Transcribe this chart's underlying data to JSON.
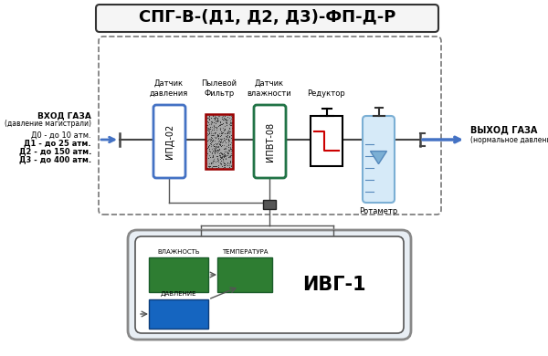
{
  "title_bold": "СПГ-В-",
  "title_rest": "(Д1, Д2, Д3)-ФП-Д-Р",
  "title_full": "СПГ-В-(Д1, Д2, Д3)-ФП-Д-Р",
  "bg_color": "#ffffff",
  "ipd_label": "ИПД-02",
  "ipvt_label": "ИПВТ-08",
  "ivg_label": "ИВГ-1",
  "rotametr_label": "Ротаметр",
  "vhod_label1": "ВХОД ГАЗА",
  "vhod_label2": "(давление магистрали)",
  "d0": "Д0 - до 10 атм.",
  "d1": "Д1 - до 25 атм.",
  "d2": "Д2 - до 150 атм.",
  "d3": "Д3 - до 400 атм.",
  "vyhod_label1": "ВЫХОД ГАЗА",
  "vyhod_label2": "(нормальное давление )",
  "datchik_davleniya": "Датчик\nдавления",
  "pylevoy_filtr": "Пылевой\nФильтр",
  "datchik_vlazhnosti": "Датчик\nвлажности",
  "reduktor": "Редуктор",
  "vlazhnost": "ВЛАЖНОСТЬ",
  "temperatura": "ТЕМПЕРАТУРА",
  "davlenie": "ДАВЛЕНИЕ",
  "blue_color": "#4472C4",
  "green_color": "#217346",
  "light_blue": "#9DC3E6",
  "gray_color": "#808080",
  "red_color": "#CC0000",
  "dark_gray": "#404040",
  "ivg_green": "#2E7D32",
  "ivg_blue": "#1565C0"
}
